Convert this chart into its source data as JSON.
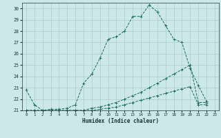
{
  "xlabel": "Humidex (Indice chaleur)",
  "background_color": "#cce8e8",
  "grid_color": "#aacccc",
  "line_color": "#1a6b5e",
  "xlim": [
    -0.5,
    23.5
  ],
  "ylim": [
    21,
    30.5
  ],
  "xticks": [
    0,
    1,
    2,
    3,
    4,
    5,
    6,
    7,
    8,
    9,
    10,
    11,
    12,
    13,
    14,
    15,
    16,
    17,
    18,
    19,
    20,
    21,
    22,
    23
  ],
  "yticks": [
    21,
    22,
    23,
    24,
    25,
    26,
    27,
    28,
    29,
    30
  ],
  "series": [
    {
      "x": [
        0,
        1,
        2,
        3,
        4,
        5,
        6,
        7,
        8,
        9,
        10,
        11,
        12,
        13,
        14,
        15,
        16,
        17,
        18,
        19,
        20,
        21,
        22
      ],
      "y": [
        22.8,
        21.5,
        21.0,
        21.1,
        21.1,
        21.2,
        21.5,
        23.4,
        24.2,
        25.6,
        27.3,
        27.5,
        28.0,
        29.3,
        29.3,
        30.3,
        29.7,
        28.5,
        27.3,
        27.0,
        24.7,
        23.2,
        21.8
      ]
    },
    {
      "x": [
        0,
        1,
        2,
        3,
        4,
        5,
        6,
        7,
        8,
        9,
        10,
        11,
        12,
        13,
        14,
        15,
        16,
        17,
        18,
        19,
        20,
        21,
        22
      ],
      "y": [
        21.0,
        21.0,
        21.0,
        21.0,
        21.0,
        21.0,
        21.0,
        21.0,
        21.2,
        21.3,
        21.5,
        21.7,
        22.0,
        22.3,
        22.6,
        23.0,
        23.4,
        23.8,
        24.2,
        24.6,
        25.0,
        21.7,
        21.7
      ]
    },
    {
      "x": [
        0,
        1,
        2,
        3,
        4,
        5,
        6,
        7,
        8,
        9,
        10,
        11,
        12,
        13,
        14,
        15,
        16,
        17,
        18,
        19,
        20,
        21,
        22
      ],
      "y": [
        21.0,
        21.0,
        21.0,
        21.0,
        21.0,
        21.0,
        21.0,
        21.0,
        21.0,
        21.1,
        21.2,
        21.3,
        21.5,
        21.7,
        21.9,
        22.1,
        22.3,
        22.5,
        22.7,
        22.9,
        23.1,
        21.5,
        21.5
      ]
    }
  ]
}
